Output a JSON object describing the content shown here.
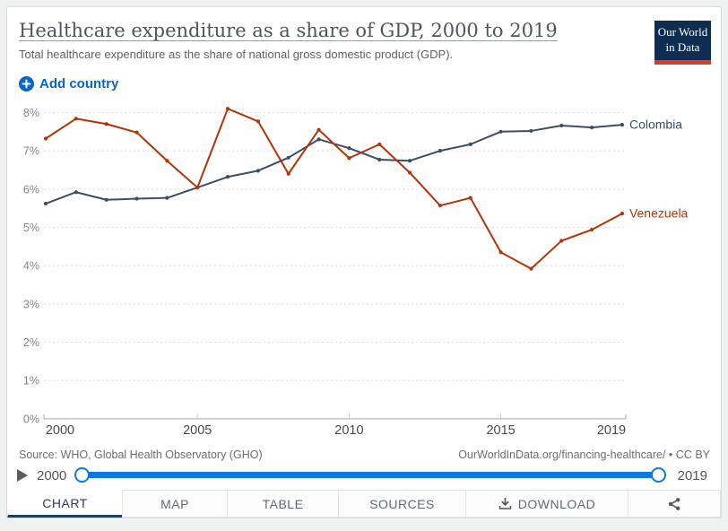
{
  "header": {
    "title": "Healthcare expenditure as a share of GDP, 2000 to 2019",
    "subtitle": "Total healthcare expenditure as the share of national gross domestic product (GDP).",
    "add_country_label": "Add country",
    "logo": {
      "line1": "Our World",
      "line2": "in Data"
    }
  },
  "chart_data": {
    "type": "line",
    "title": "Healthcare expenditure as a share of GDP, 2000 to 2019",
    "x": [
      2000,
      2001,
      2002,
      2003,
      2004,
      2005,
      2006,
      2007,
      2008,
      2009,
      2010,
      2011,
      2012,
      2013,
      2014,
      2015,
      2016,
      2017,
      2018,
      2019
    ],
    "series": [
      {
        "name": "Colombia",
        "color": "#3C4E66",
        "values": [
          5.62,
          5.92,
          5.72,
          5.75,
          5.77,
          6.04,
          6.32,
          6.48,
          6.82,
          7.3,
          7.07,
          6.77,
          6.74,
          7.0,
          7.17,
          7.5,
          7.52,
          7.66,
          7.61,
          7.68
        ]
      },
      {
        "name": "Venezuela",
        "color": "#B13507",
        "values": [
          7.32,
          7.84,
          7.7,
          7.48,
          6.74,
          6.04,
          8.1,
          7.77,
          6.4,
          7.55,
          6.81,
          7.17,
          6.43,
          5.57,
          5.77,
          4.35,
          3.92,
          4.65,
          4.94,
          5.36
        ]
      }
    ],
    "xlim": [
      2000,
      2019
    ],
    "ylim": [
      0,
      8
    ],
    "yticks": [
      0,
      1,
      2,
      3,
      4,
      5,
      6,
      7,
      8
    ],
    "ytick_suffix": "%",
    "xticks": [
      2000,
      2005,
      2010,
      2015,
      2019
    ],
    "grid": "horizontal-dashed",
    "legend": "line-end-labels"
  },
  "footer": {
    "source": "Source: WHO, Global Health Observatory (GHO)",
    "link": "OurWorldInData.org/financing-healthcare/",
    "separator": "•",
    "license": "CC BY"
  },
  "timeline": {
    "start_year": "2000",
    "end_year": "2019"
  },
  "tabs": [
    {
      "label": "CHART",
      "active": true
    },
    {
      "label": "MAP",
      "active": false
    },
    {
      "label": "TABLE",
      "active": false
    },
    {
      "label": "SOURCES",
      "active": false
    },
    {
      "label": "DOWNLOAD",
      "active": false,
      "icon": "download-icon"
    },
    {
      "label": "",
      "active": false,
      "icon": "share-icon"
    }
  ],
  "colors": {
    "accent_blue": "#0B66C3",
    "slider_blue": "#0B7AE0",
    "colombia": "#3C4E66",
    "venezuela": "#B13507",
    "tab_active_underline": "#1D3D63",
    "logo_bg": "#0D2E51",
    "logo_red": "#DC3A2B"
  }
}
